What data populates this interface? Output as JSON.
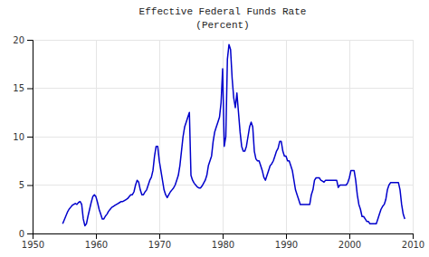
{
  "chart_data": {
    "type": "line",
    "title": "Effective Federal Funds Rate",
    "subtitle": "(Percent)",
    "color": "#0000CC",
    "grid": true,
    "xlim": [
      1950,
      2010
    ],
    "ylim": [
      0,
      20
    ],
    "xticks": [
      1950,
      1960,
      1970,
      1980,
      1990,
      2000,
      2010
    ],
    "yticks": [
      0,
      5,
      10,
      15,
      20
    ],
    "x": [
      1954.75,
      1955.0,
      1955.25,
      1955.5,
      1955.75,
      1956.0,
      1956.25,
      1956.5,
      1956.75,
      1957.0,
      1957.25,
      1957.5,
      1957.75,
      1958.0,
      1958.25,
      1958.5,
      1958.75,
      1959.0,
      1959.25,
      1959.5,
      1959.75,
      1960.0,
      1960.25,
      1960.5,
      1960.75,
      1961.0,
      1961.25,
      1961.5,
      1961.75,
      1962.0,
      1962.25,
      1962.5,
      1962.75,
      1963.0,
      1963.25,
      1963.5,
      1963.75,
      1964.0,
      1964.25,
      1964.5,
      1964.75,
      1965.0,
      1965.25,
      1965.5,
      1965.75,
      1966.0,
      1966.25,
      1966.5,
      1966.75,
      1967.0,
      1967.25,
      1967.5,
      1967.75,
      1968.0,
      1968.25,
      1968.5,
      1968.75,
      1969.0,
      1969.25,
      1969.5,
      1969.75,
      1970.0,
      1970.25,
      1970.5,
      1970.75,
      1971.0,
      1971.25,
      1971.5,
      1971.75,
      1972.0,
      1972.25,
      1972.5,
      1972.75,
      1973.0,
      1973.25,
      1973.5,
      1973.75,
      1974.0,
      1974.25,
      1974.5,
      1974.75,
      1975.0,
      1975.25,
      1975.5,
      1975.75,
      1976.0,
      1976.25,
      1976.5,
      1976.75,
      1977.0,
      1977.25,
      1977.5,
      1977.75,
      1978.0,
      1978.25,
      1978.5,
      1978.75,
      1979.0,
      1979.25,
      1979.5,
      1979.75,
      1980.0,
      1980.25,
      1980.5,
      1980.75,
      1981.0,
      1981.25,
      1981.5,
      1981.75,
      1982.0,
      1982.25,
      1982.5,
      1982.75,
      1983.0,
      1983.25,
      1983.5,
      1983.75,
      1984.0,
      1984.25,
      1984.5,
      1984.75,
      1985.0,
      1985.25,
      1985.5,
      1985.75,
      1986.0,
      1986.25,
      1986.5,
      1986.75,
      1987.0,
      1987.25,
      1987.5,
      1987.75,
      1988.0,
      1988.25,
      1988.5,
      1988.75,
      1989.0,
      1989.25,
      1989.5,
      1989.75,
      1990.0,
      1990.25,
      1990.5,
      1990.75,
      1991.0,
      1991.25,
      1991.5,
      1991.75,
      1992.0,
      1992.25,
      1992.5,
      1992.75,
      1993.0,
      1993.25,
      1993.5,
      1993.75,
      1994.0,
      1994.25,
      1994.5,
      1994.75,
      1995.0,
      1995.25,
      1995.5,
      1995.75,
      1996.0,
      1996.25,
      1996.5,
      1996.75,
      1997.0,
      1997.25,
      1997.5,
      1997.75,
      1998.0,
      1998.25,
      1998.5,
      1998.75,
      1999.0,
      1999.25,
      1999.5,
      1999.75,
      2000.0,
      2000.25,
      2000.5,
      2000.75,
      2001.0,
      2001.25,
      2001.5,
      2001.75,
      2002.0,
      2002.25,
      2002.5,
      2002.75,
      2003.0,
      2003.25,
      2003.5,
      2003.75,
      2004.0,
      2004.25,
      2004.5,
      2004.75,
      2005.0,
      2005.25,
      2005.5,
      2005.75,
      2006.0,
      2006.25,
      2006.5,
      2006.75,
      2007.0,
      2007.25,
      2007.5,
      2007.75,
      2008.0,
      2008.25,
      2008.5,
      2008.75
    ],
    "values": [
      1.0,
      1.4,
      1.8,
      2.2,
      2.5,
      2.7,
      2.9,
      3.0,
      3.1,
      3.0,
      3.2,
      3.3,
      3.0,
      1.5,
      0.8,
      1.0,
      1.8,
      2.5,
      3.2,
      3.8,
      4.0,
      3.8,
      3.2,
      2.5,
      2.0,
      1.5,
      1.5,
      1.8,
      2.0,
      2.3,
      2.5,
      2.7,
      2.8,
      2.9,
      3.0,
      3.1,
      3.2,
      3.3,
      3.3,
      3.4,
      3.5,
      3.6,
      3.8,
      4.0,
      4.0,
      4.3,
      5.0,
      5.5,
      5.3,
      4.5,
      4.0,
      4.0,
      4.3,
      4.5,
      5.0,
      5.5,
      5.8,
      6.5,
      8.0,
      9.0,
      9.0,
      7.5,
      6.5,
      5.5,
      4.5,
      4.0,
      3.7,
      4.0,
      4.3,
      4.5,
      4.7,
      5.0,
      5.5,
      6.0,
      7.0,
      8.5,
      10.0,
      11.0,
      11.5,
      12.0,
      12.5,
      6.0,
      5.5,
      5.2,
      5.0,
      4.8,
      4.7,
      4.7,
      4.9,
      5.2,
      5.5,
      6.0,
      7.0,
      7.5,
      8.0,
      9.5,
      10.5,
      11.0,
      11.5,
      12.0,
      13.5,
      17.0,
      9.0,
      10.0,
      18.0,
      19.5,
      19.0,
      16.0,
      14.0,
      13.0,
      14.5,
      12.5,
      10.5,
      9.0,
      8.5,
      8.5,
      9.0,
      10.0,
      11.0,
      11.5,
      11.0,
      8.5,
      7.7,
      7.5,
      7.5,
      7.0,
      6.5,
      5.8,
      5.5,
      6.0,
      6.5,
      7.0,
      7.2,
      7.5,
      8.0,
      8.5,
      8.8,
      9.5,
      9.5,
      8.5,
      8.0,
      8.0,
      7.5,
      7.5,
      7.0,
      6.5,
      5.5,
      4.5,
      4.0,
      3.5,
      3.0,
      3.0,
      3.0,
      3.0,
      3.0,
      3.0,
      3.0,
      4.0,
      4.5,
      5.5,
      5.75,
      5.75,
      5.75,
      5.5,
      5.4,
      5.3,
      5.5,
      5.5,
      5.5,
      5.5,
      5.5,
      5.5,
      5.5,
      5.5,
      4.75,
      5.0,
      5.0,
      5.0,
      5.0,
      5.0,
      5.25,
      5.75,
      6.5,
      6.5,
      6.5,
      5.5,
      4.0,
      3.0,
      2.5,
      1.75,
      1.75,
      1.5,
      1.25,
      1.25,
      1.0,
      1.0,
      1.0,
      1.0,
      1.0,
      1.5,
      2.0,
      2.5,
      2.8,
      3.0,
      3.5,
      4.5,
      5.0,
      5.25,
      5.25,
      5.25,
      5.25,
      5.25,
      5.25,
      4.5,
      3.0,
      2.0,
      1.5
    ]
  }
}
